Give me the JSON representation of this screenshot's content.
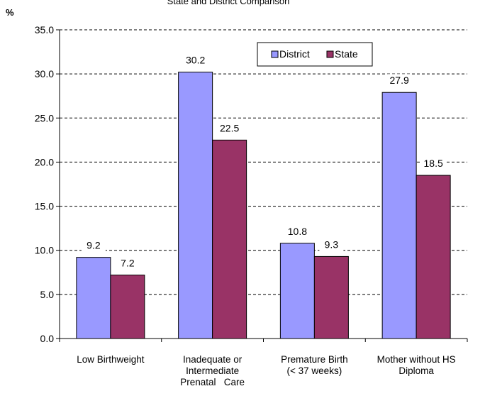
{
  "chart_data": {
    "type": "bar",
    "title": "State and District Comparison",
    "ylabel": "%",
    "xlabel": "",
    "categories": [
      [
        "Low Birthweight"
      ],
      [
        "Inadequate or",
        "Intermediate",
        "Prenatal   Care"
      ],
      [
        "Premature Birth",
        "(< 37 weeks)"
      ],
      [
        "Mother without HS",
        "Diploma"
      ]
    ],
    "series": [
      {
        "name": "District",
        "color": "#9999FF",
        "values": [
          9.2,
          30.2,
          10.8,
          27.9
        ]
      },
      {
        "name": "State",
        "color": "#993366",
        "values": [
          7.2,
          22.5,
          9.3,
          18.5
        ]
      }
    ],
    "ylim": [
      0,
      35
    ],
    "yticks": [
      "0.0",
      "5.0",
      "10.0",
      "15.0",
      "20.0",
      "25.0",
      "30.0",
      "35.0"
    ],
    "grid": "dashed-horizontal",
    "legend_position": "top-right",
    "data_labels": true
  }
}
